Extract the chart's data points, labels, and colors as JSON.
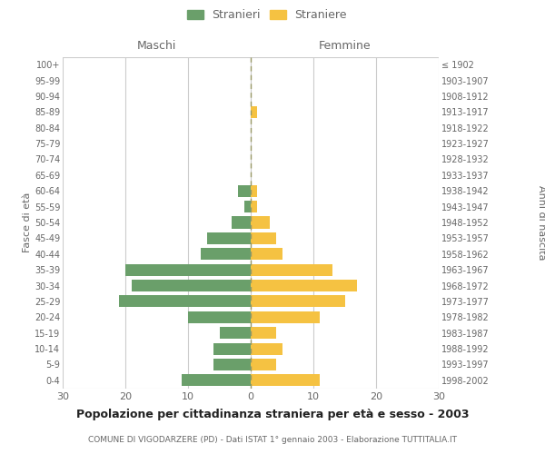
{
  "age_groups": [
    "0-4",
    "5-9",
    "10-14",
    "15-19",
    "20-24",
    "25-29",
    "30-34",
    "35-39",
    "40-44",
    "45-49",
    "50-54",
    "55-59",
    "60-64",
    "65-69",
    "70-74",
    "75-79",
    "80-84",
    "85-89",
    "90-94",
    "95-99",
    "100+"
  ],
  "birth_years": [
    "1998-2002",
    "1993-1997",
    "1988-1992",
    "1983-1987",
    "1978-1982",
    "1973-1977",
    "1968-1972",
    "1963-1967",
    "1958-1962",
    "1953-1957",
    "1948-1952",
    "1943-1947",
    "1938-1942",
    "1933-1937",
    "1928-1932",
    "1923-1927",
    "1918-1922",
    "1913-1917",
    "1908-1912",
    "1903-1907",
    "≤ 1902"
  ],
  "males": [
    11,
    6,
    6,
    5,
    10,
    21,
    19,
    20,
    8,
    7,
    3,
    1,
    2,
    0,
    0,
    0,
    0,
    0,
    0,
    0,
    0
  ],
  "females": [
    11,
    4,
    5,
    4,
    11,
    15,
    17,
    13,
    5,
    4,
    3,
    1,
    1,
    0,
    0,
    0,
    0,
    1,
    0,
    0,
    0
  ],
  "male_color": "#6a9f6a",
  "female_color": "#f5c242",
  "center_line_color": "#999966",
  "grid_color": "#cccccc",
  "bg_color": "#ffffff",
  "title": "Popolazione per cittadinanza straniera per età e sesso - 2003",
  "subtitle": "COMUNE DI VIGODARZERE (PD) - Dati ISTAT 1° gennaio 2003 - Elaborazione TUTTITALIA.IT",
  "ylabel_left": "Fasce di età",
  "ylabel_right": "Anni di nascita",
  "legend_male": "Stranieri",
  "legend_female": "Straniere",
  "xlim": 30,
  "text_color": "#666666",
  "header_maschi": "Maschi",
  "header_femmine": "Femmine"
}
